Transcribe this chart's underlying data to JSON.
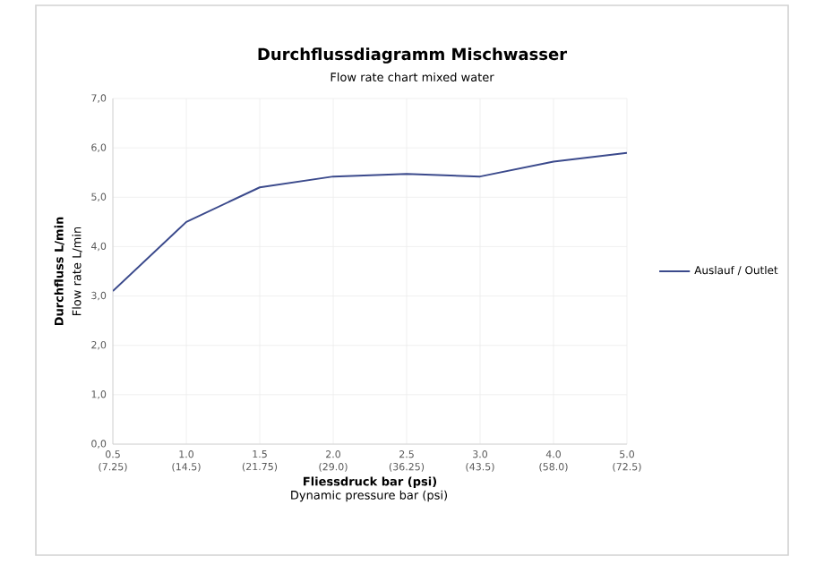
{
  "chart_data": {
    "type": "line",
    "title": "Durchflussdiagramm Mischwasser",
    "subtitle": "Flow rate chart mixed water",
    "xlabel": "Fliessdruck bar (psi)",
    "ylabel": "Durchfluss L/min",
    "annotations": [
      "Dynamic pressure bar (psi)",
      "Flow rate L/min"
    ],
    "categories": [
      "0.5 (7.25)",
      "1.0 (14.5)",
      "1.5 (21.75)",
      "2.0 (29.0)",
      "2.5 (36.25)",
      "3.0 (43.5)",
      "4.0 (58.0)",
      "5.0 (72.5)"
    ],
    "series": [
      {
        "name": "Auslauf / Outlet",
        "color": "#3b4a8c",
        "values": [
          3.1,
          4.5,
          5.2,
          5.42,
          5.47,
          5.42,
          5.72,
          5.9
        ]
      }
    ],
    "ylim": [
      0,
      7
    ],
    "yticks": [
      {
        "value": 0,
        "label": "0,0"
      },
      {
        "value": 1,
        "label": "1,0"
      },
      {
        "value": 2,
        "label": "2,0"
      },
      {
        "value": 3,
        "label": "3,0"
      },
      {
        "value": 4,
        "label": "4,0"
      },
      {
        "value": 5,
        "label": "5,0"
      },
      {
        "value": 6,
        "label": "6,0"
      },
      {
        "value": 7,
        "label": "7,0"
      }
    ],
    "grid": true,
    "legend": "right",
    "marker": "none",
    "line_style": "solid"
  }
}
